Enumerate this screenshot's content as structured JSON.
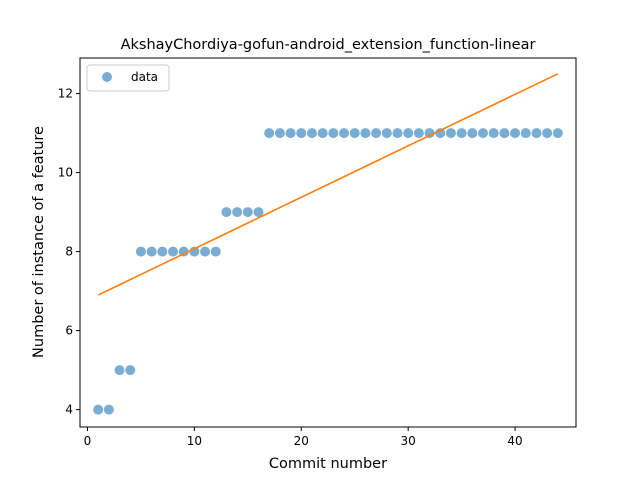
{
  "chart_data": {
    "type": "scatter",
    "title": "AkshayChordiya-gofun-android_extension_function-linear",
    "xlabel": "Commit number",
    "ylabel": "Number of instance of a feature",
    "xlim": [
      -0.7,
      45.7
    ],
    "ylim": [
      3.56,
      12.9
    ],
    "xticks": [
      0,
      10,
      20,
      30,
      40
    ],
    "yticks": [
      4,
      6,
      8,
      10,
      12
    ],
    "grid": false,
    "legend": {
      "placement": "top-left",
      "entries": [
        "data"
      ]
    },
    "colors": {
      "data": "#1f77b4",
      "fit": "#ff7f0e"
    },
    "series": [
      {
        "name": "data",
        "kind": "scatter",
        "x": [
          1,
          2,
          3,
          4,
          5,
          6,
          7,
          8,
          9,
          10,
          11,
          12,
          13,
          14,
          15,
          16,
          17,
          18,
          19,
          20,
          21,
          22,
          23,
          24,
          25,
          26,
          27,
          28,
          29,
          30,
          31,
          32,
          33,
          34,
          35,
          36,
          37,
          38,
          39,
          40,
          41,
          42,
          43,
          44
        ],
        "y": [
          4,
          4,
          5,
          5,
          8,
          8,
          8,
          8,
          8,
          8,
          8,
          8,
          9,
          9,
          9,
          9,
          11,
          11,
          11,
          11,
          11,
          11,
          11,
          11,
          11,
          11,
          11,
          11,
          11,
          11,
          11,
          11,
          11,
          11,
          11,
          11,
          11,
          11,
          11,
          11,
          11,
          11,
          11,
          11
        ]
      },
      {
        "kind": "line",
        "x": [
          1,
          44
        ],
        "y": [
          6.9,
          12.5
        ]
      }
    ]
  }
}
